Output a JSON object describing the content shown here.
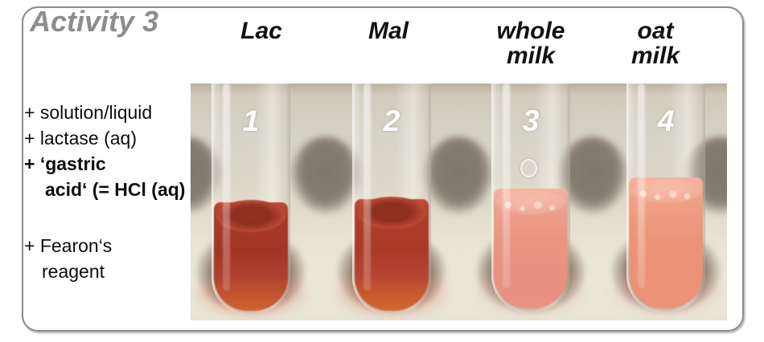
{
  "slide": {
    "title": "Activity 3",
    "title_color": "#8d8d8d",
    "border_color": "#8a8a8a"
  },
  "reagents": {
    "line1": "+ solution/liquid",
    "line2": "+ lactase (aq)",
    "line3": "+ ‘gastric",
    "line4": "acid‘ (= HCl (aq)",
    "line5": "+ Fearon‘s",
    "line6": "reagent"
  },
  "tubes": [
    {
      "number": "1",
      "header_line1": "Lac",
      "header_line2": "",
      "liquid_color": "#a83a27",
      "liquid_bottom_color": "#cd652e"
    },
    {
      "number": "2",
      "header_line1": "Mal",
      "header_line2": "",
      "liquid_color": "#b03d2a",
      "liquid_bottom_color": "#d06a2e"
    },
    {
      "number": "3",
      "header_line1": "whole",
      "header_line2": "milk",
      "liquid_color": "#ea9582",
      "liquid_bottom_color": "#ea9282"
    },
    {
      "number": "4",
      "header_line1": "oat",
      "header_line2": "milk",
      "liquid_color": "#ec9478",
      "liquid_bottom_color": "#ec9276"
    }
  ],
  "photo_colors": {
    "wall_top": "#cfcaba",
    "surface_bottom": "#ece7d7",
    "rack_hole": "#877c72",
    "number_color": "#ffffff"
  }
}
